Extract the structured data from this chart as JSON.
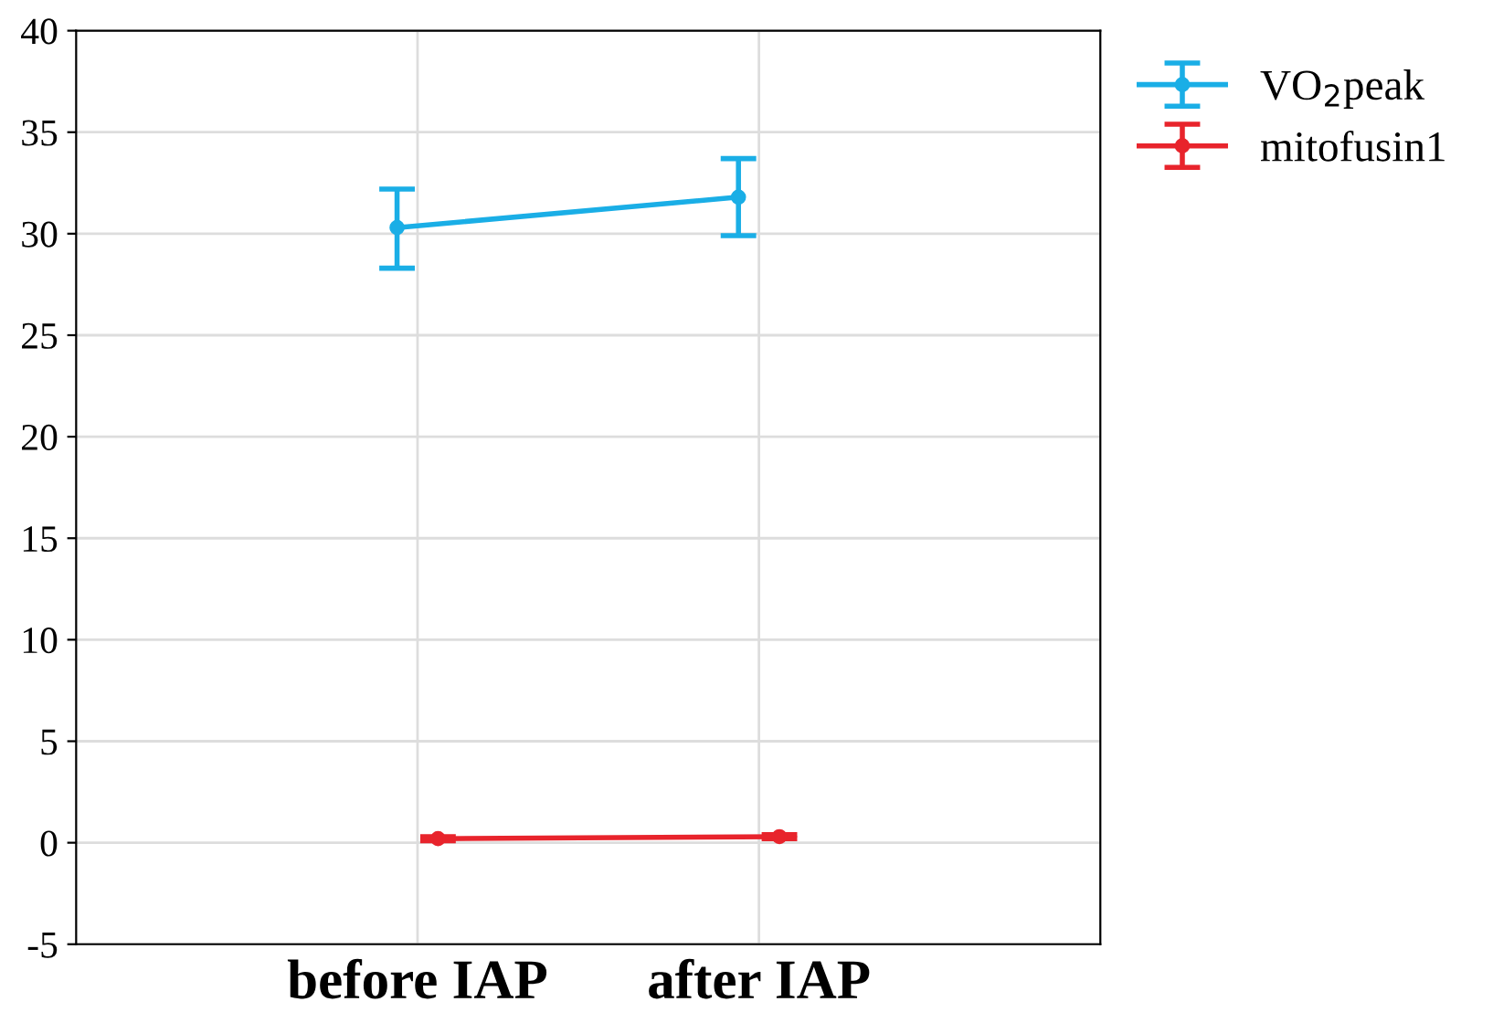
{
  "chart_data": {
    "type": "line",
    "categories": [
      "before IAP",
      "after IAP"
    ],
    "series": [
      {
        "name": "VO$_{2}$peak",
        "color": "#1aaee6",
        "values": [
          30.3,
          31.8
        ],
        "errors": [
          [
            28.3,
            32.2
          ],
          [
            29.9,
            33.7
          ]
        ]
      },
      {
        "name": "mitofusin1",
        "color": "#e8242c",
        "values": [
          0.2,
          0.3
        ],
        "errors": [
          [
            0.1,
            0.3
          ],
          [
            0.2,
            0.4
          ]
        ]
      }
    ],
    "ylim": [
      -5,
      40
    ],
    "yticks": [
      -5,
      0,
      5,
      10,
      15,
      20,
      25,
      30,
      35,
      40
    ],
    "grid": true,
    "legend": "top right",
    "marker": "circle",
    "line_style": "solid"
  }
}
